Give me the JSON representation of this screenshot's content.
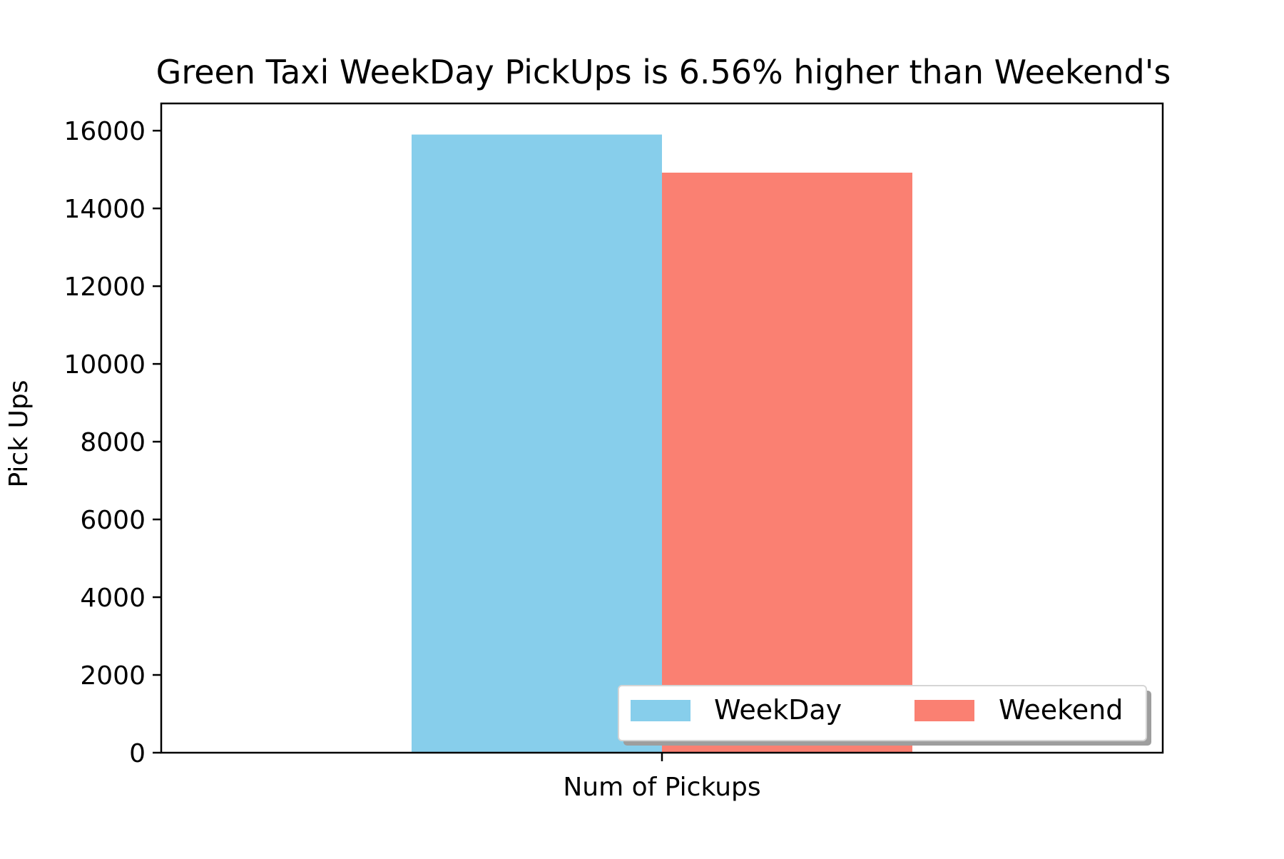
{
  "chart_data": {
    "type": "bar",
    "title": "Green Taxi WeekDay PickUps is 6.56% higher than Weekend's",
    "xlabel": "",
    "ylabel": "Pick Ups",
    "categories": [
      "Num of Pickups"
    ],
    "series": [
      {
        "name": "WeekDay",
        "values": [
          15900
        ],
        "color": "#87CEEB"
      },
      {
        "name": "Weekend",
        "values": [
          14920
        ],
        "color": "#FA8072"
      }
    ],
    "ylim": [
      0,
      16700
    ],
    "yticks": [
      0,
      2000,
      4000,
      6000,
      8000,
      10000,
      12000,
      14000,
      16000
    ],
    "grid": false,
    "legend": {
      "position": "lower-right",
      "columns": 2
    }
  }
}
